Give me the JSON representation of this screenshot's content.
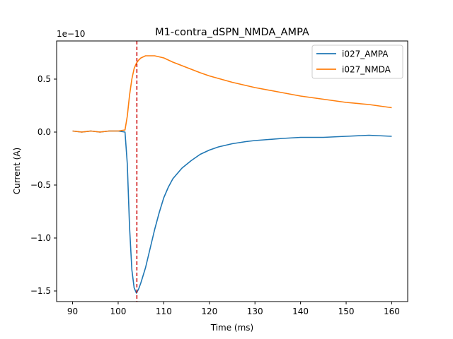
{
  "chart_data": {
    "type": "line",
    "title": "M1-contra_dSPN_NMDA_AMPA",
    "xlabel": "Time (ms)",
    "ylabel": "Current (A)",
    "y_offset_label": "1e−10",
    "y_scale": 1e-10,
    "xlim": [
      86.5,
      163.5
    ],
    "ylim": [
      -1.6,
      0.86
    ],
    "x_ticks": [
      90,
      100,
      110,
      120,
      130,
      140,
      150,
      160
    ],
    "x_tick_labels": [
      "90",
      "100",
      "110",
      "120",
      "130",
      "140",
      "150",
      "160"
    ],
    "y_ticks": [
      -1.5,
      -1.0,
      -0.5,
      0.0,
      0.5
    ],
    "y_tick_labels": [
      "−1.5",
      "−1.0",
      "−0.5",
      "0.0",
      "0.5"
    ],
    "grid": false,
    "legend_position": "top-right",
    "vline": {
      "x": 104.1,
      "color": "#cc0000",
      "style": "dashed"
    },
    "series": [
      {
        "name": "i027_AMPA",
        "color": "#1f77b4",
        "x": [
          90,
          92,
          94,
          96,
          98,
          100,
          101.5,
          102,
          102.5,
          103,
          103.5,
          104,
          104.5,
          105,
          105.5,
          106,
          107,
          108,
          109,
          110,
          111,
          112,
          114,
          116,
          118,
          120,
          122,
          125,
          128,
          130,
          133,
          136,
          140,
          145,
          150,
          155,
          160
        ],
        "y": [
          0.01,
          0.0,
          0.01,
          0.0,
          0.01,
          0.01,
          0.0,
          -0.3,
          -0.9,
          -1.3,
          -1.47,
          -1.52,
          -1.48,
          -1.42,
          -1.35,
          -1.28,
          -1.1,
          -0.92,
          -0.76,
          -0.62,
          -0.52,
          -0.44,
          -0.34,
          -0.27,
          -0.21,
          -0.17,
          -0.14,
          -0.11,
          -0.09,
          -0.08,
          -0.07,
          -0.06,
          -0.05,
          -0.05,
          -0.04,
          -0.03,
          -0.04
        ]
      },
      {
        "name": "i027_NMDA",
        "color": "#ff7f0e",
        "x": [
          90,
          92,
          94,
          96,
          98,
          100,
          101.5,
          102,
          102.5,
          103,
          103.5,
          104,
          104.5,
          105,
          106,
          107,
          108,
          110,
          112,
          115,
          118,
          120,
          125,
          130,
          135,
          140,
          145,
          150,
          155,
          160
        ],
        "y": [
          0.01,
          0.0,
          0.01,
          0.0,
          0.01,
          0.01,
          0.02,
          0.15,
          0.35,
          0.5,
          0.6,
          0.65,
          0.68,
          0.7,
          0.72,
          0.72,
          0.72,
          0.7,
          0.66,
          0.61,
          0.56,
          0.53,
          0.47,
          0.42,
          0.38,
          0.34,
          0.31,
          0.28,
          0.26,
          0.23
        ]
      }
    ]
  }
}
